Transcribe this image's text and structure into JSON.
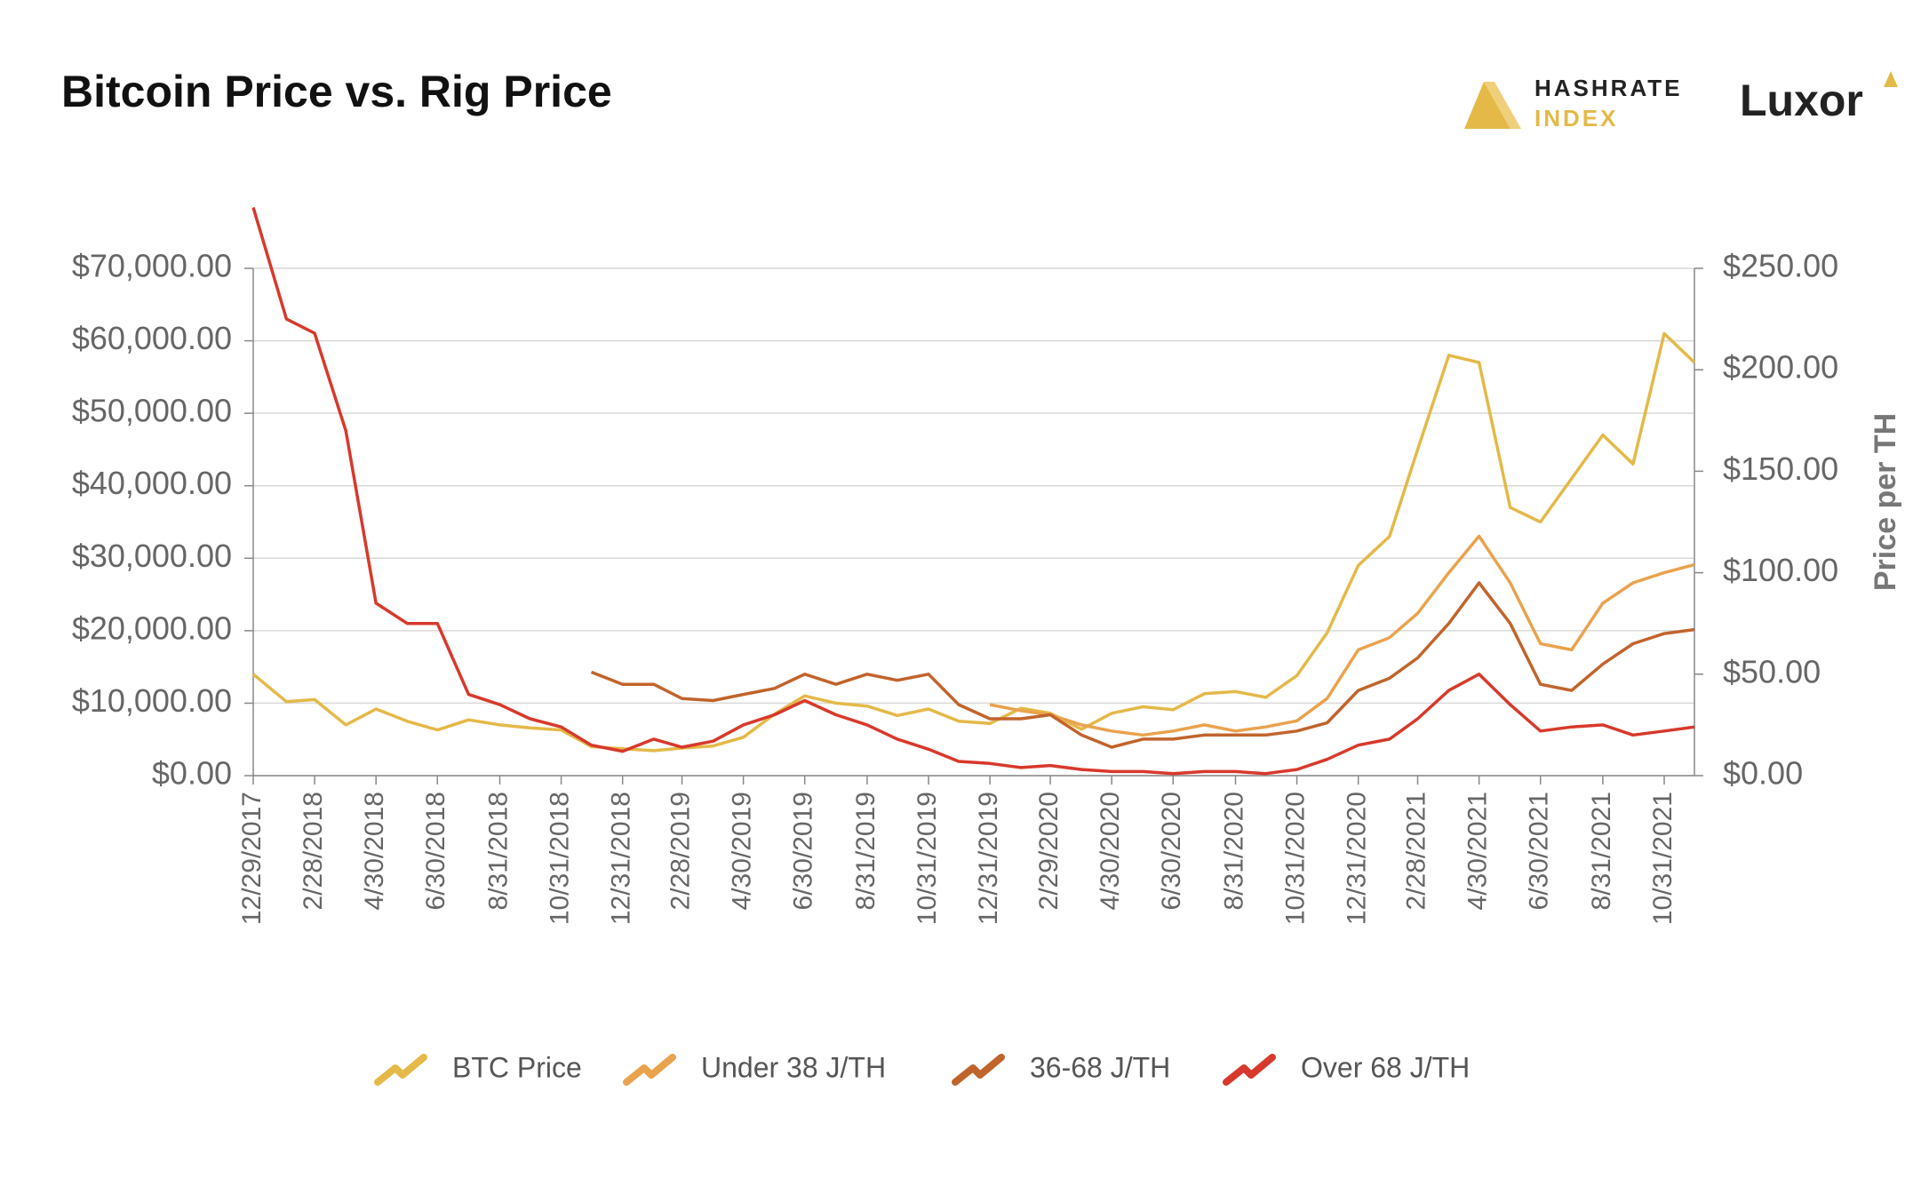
{
  "chart_data": {
    "type": "line",
    "title": "Bitcoin Price vs. Rig Price",
    "logos": [
      "HASHRATE",
      "INDEX",
      "Luxor"
    ],
    "y2label": "Price per TH",
    "x": [
      "12/29/2017",
      "1/31/2018",
      "2/28/2018",
      "3/31/2018",
      "4/30/2018",
      "5/31/2018",
      "6/30/2018",
      "7/31/2018",
      "8/31/2018",
      "9/30/2018",
      "10/31/2018",
      "11/30/2018",
      "12/31/2018",
      "1/31/2019",
      "2/28/2019",
      "3/31/2019",
      "4/30/2019",
      "5/31/2019",
      "6/30/2019",
      "7/31/2019",
      "8/31/2019",
      "9/30/2019",
      "10/31/2019",
      "11/30/2019",
      "12/31/2019",
      "1/31/2020",
      "2/29/2020",
      "3/31/2020",
      "4/30/2020",
      "5/31/2020",
      "6/30/2020",
      "7/31/2020",
      "8/31/2020",
      "9/30/2020",
      "10/31/2020",
      "11/30/2020",
      "12/31/2020",
      "1/31/2021",
      "2/28/2021",
      "3/31/2021",
      "4/30/2021",
      "5/31/2021",
      "6/30/2021",
      "7/31/2021",
      "8/31/2021",
      "9/30/2021",
      "10/31/2021",
      "11/30/2021"
    ],
    "xlim": [
      "12/29/2017",
      "11/30/2021"
    ],
    "xticks": [
      "12/29/2017",
      "2/28/2018",
      "4/30/2018",
      "6/30/2018",
      "8/31/2018",
      "10/31/2018",
      "12/31/2018",
      "2/28/2019",
      "4/30/2019",
      "6/30/2019",
      "8/31/2019",
      "10/31/2019",
      "12/31/2019",
      "2/29/2020",
      "4/30/2020",
      "6/30/2020",
      "8/31/2020",
      "10/31/2020",
      "12/31/2020",
      "2/28/2021",
      "4/30/2021",
      "6/30/2021",
      "8/31/2021",
      "10/31/2021"
    ],
    "ylim": [
      0,
      70000
    ],
    "yticks": [
      {
        "value": 0,
        "label": "$0.00"
      },
      {
        "value": 10000,
        "label": "$10,000.00"
      },
      {
        "value": 20000,
        "label": "$20,000.00"
      },
      {
        "value": 30000,
        "label": "$30,000.00"
      },
      {
        "value": 40000,
        "label": "$40,000.00"
      },
      {
        "value": 50000,
        "label": "$50,000.00"
      },
      {
        "value": 60000,
        "label": "$60,000.00"
      },
      {
        "value": 70000,
        "label": "$70,000.00"
      }
    ],
    "y2lim": [
      0,
      250
    ],
    "y2ticks": [
      {
        "value": 0,
        "label": "$0.00"
      },
      {
        "value": 50,
        "label": "$50.00"
      },
      {
        "value": 100,
        "label": "$100.00"
      },
      {
        "value": 150,
        "label": "$150.00"
      },
      {
        "value": 200,
        "label": "$200.00"
      },
      {
        "value": 250,
        "label": "$250.00"
      }
    ],
    "grid": true,
    "legend": "bottom",
    "series": [
      {
        "name": "BTC Price",
        "color": "#e4b948",
        "values": [
          14000,
          10200,
          10500,
          7000,
          9200,
          7500,
          6300,
          7700,
          7000,
          6600,
          6300,
          4000,
          3700,
          3450,
          3800,
          4100,
          5300,
          8500,
          11000,
          10000,
          9600,
          8300,
          9200,
          7500,
          7200,
          9300,
          8600,
          6400,
          8600,
          9500,
          9100,
          11300,
          11600,
          10800,
          13800,
          19700,
          29000,
          33000,
          45000,
          58000,
          57000,
          37000,
          35000,
          41000,
          47000,
          43000,
          61000,
          57000
        ]
      },
      {
        "name": "Under 38 J/TH",
        "color": "#e9a34d",
        "axis": "y2",
        "values": [
          null,
          null,
          null,
          null,
          null,
          null,
          null,
          null,
          null,
          null,
          null,
          null,
          null,
          null,
          null,
          null,
          null,
          null,
          null,
          null,
          null,
          null,
          null,
          null,
          35,
          32,
          30,
          25,
          22,
          20,
          22,
          25,
          22,
          24,
          27,
          38,
          62,
          68,
          80,
          100,
          118,
          95,
          65,
          62,
          85,
          95,
          100,
          104
        ]
      },
      {
        "name": "36-68 J/TH",
        "color": "#c1642c",
        "axis": "y2",
        "values": [
          null,
          null,
          null,
          null,
          null,
          null,
          null,
          null,
          null,
          null,
          null,
          51,
          45,
          45,
          38,
          37,
          40,
          43,
          50,
          45,
          50,
          47,
          50,
          35,
          28,
          28,
          30,
          20,
          14,
          18,
          18,
          20,
          20,
          20,
          22,
          26,
          42,
          48,
          58,
          75,
          95,
          75,
          45,
          42,
          55,
          65,
          70,
          72
        ]
      },
      {
        "name": "Over 68 J/TH",
        "color": "#d7392c",
        "axis": "y2",
        "values": [
          280,
          225,
          218,
          170,
          85,
          75,
          75,
          40,
          35,
          28,
          24,
          15,
          12,
          18,
          14,
          17,
          25,
          30,
          37,
          30,
          25,
          18,
          13,
          7,
          6,
          4,
          5,
          3,
          2,
          2,
          1,
          2,
          2,
          1,
          3,
          8,
          15,
          18,
          28,
          42,
          50,
          35,
          22,
          24,
          25,
          20,
          22,
          24
        ]
      }
    ]
  }
}
